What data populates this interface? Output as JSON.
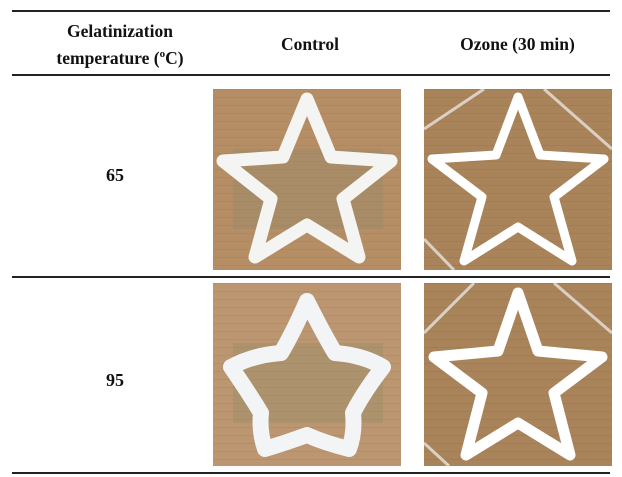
{
  "header": {
    "col1_line1": "Gelatinization",
    "col1_line2": "temperature (",
    "col1_sup": "o",
    "col1_end": "C)",
    "col2": "Control",
    "col3": "Ozone (30 min)"
  },
  "rows": [
    {
      "temperature": "65"
    },
    {
      "temperature": "95"
    }
  ],
  "photos": {
    "background_color": "#b08a62",
    "star_color": "#ffffff",
    "items": [
      {
        "row": "65",
        "treatment": "Control",
        "icon": "star-print-photo"
      },
      {
        "row": "65",
        "treatment": "Ozone (30 min)",
        "icon": "star-print-photo"
      },
      {
        "row": "95",
        "treatment": "Control",
        "icon": "star-print-photo"
      },
      {
        "row": "95",
        "treatment": "Ozone (30 min)",
        "icon": "star-print-photo"
      }
    ]
  }
}
